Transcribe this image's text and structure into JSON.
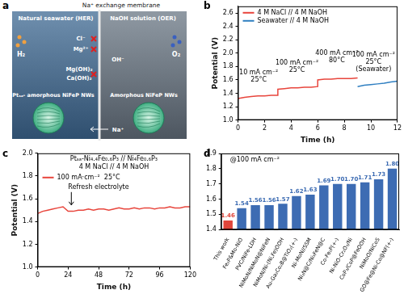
{
  "diagram": {
    "panel": "a",
    "membrane": "Na⁺ exchange membrane",
    "left_title": "Natural seawater (HER)",
    "right_title": "NaOH solution (OER)",
    "gases": [
      "H₂",
      "O₂"
    ],
    "ions": [
      "Cl⁻",
      "Mg²⁺",
      "OH⁻",
      "Mg(OH)₂",
      "Ca(OH)₂",
      "Na⁺"
    ],
    "left_catalyst": "Ptₛₐ- amorphous NiFeP NWs",
    "right_catalyst": "Amorphous NiFeP NWs"
  },
  "chart_data": [
    {
      "type": "line",
      "panel": "b",
      "x_label": "Time (h)",
      "y_label": "Potential (V)",
      "xlim": [
        0,
        12
      ],
      "xticks": [
        0,
        2,
        4,
        6,
        8,
        10,
        12
      ],
      "ylim": [
        1.0,
        2.7
      ],
      "yticks": [
        {
          "value": 1.0,
          "label": "1.0"
        },
        {
          "value": 1.2,
          "label": "1.2"
        },
        {
          "value": 1.4,
          "label": "1.4"
        },
        {
          "value": 1.6,
          "label": "1.6"
        },
        {
          "value": 1.8,
          "label": "1.8"
        },
        {
          "value": 2.0,
          "label": "2.0"
        },
        {
          "value": 2.2,
          "label": "2.2"
        },
        {
          "value": 2.4,
          "label": "2.4"
        },
        {
          "value": 2.6,
          "label": "2.6"
        }
      ],
      "grid": false,
      "legend": "upper left",
      "annotations": [
        [
          "10 mA cm⁻²",
          "25°C"
        ],
        [
          "100 mA cm⁻²",
          "25°C"
        ],
        [
          "400 mA cm⁻²",
          "80°C"
        ],
        [
          "100 mA cm⁻²",
          "25°C",
          "(Seawater)"
        ]
      ],
      "series": [
        {
          "name": "4 M NaCl // 4 M NaOH",
          "color": "#e8453c",
          "x": [
            0,
            0.5,
            1,
            1.5,
            2,
            2.5,
            3,
            3,
            3.5,
            4,
            4.5,
            5,
            5.5,
            6,
            6,
            6.5,
            7,
            7.5,
            8,
            8.5,
            9
          ],
          "values": [
            1.32,
            1.34,
            1.35,
            1.36,
            1.36,
            1.37,
            1.37,
            1.46,
            1.47,
            1.48,
            1.48,
            1.49,
            1.49,
            1.5,
            1.6,
            1.61,
            1.61,
            1.62,
            1.62,
            1.62,
            1.63
          ]
        },
        {
          "name": "Seawater // 4 M NaOH",
          "color": "#2f7fc1",
          "x": [
            9,
            9.5,
            10,
            10.5,
            11,
            11.5,
            12
          ],
          "values": [
            1.5,
            1.52,
            1.53,
            1.54,
            1.55,
            1.57,
            1.58
          ]
        }
      ]
    },
    {
      "type": "line",
      "panel": "c",
      "x_label": "Time (h)",
      "y_label": "Potential (V)",
      "xlim": [
        0,
        120
      ],
      "xticks": [
        0,
        24,
        48,
        72,
        96,
        120
      ],
      "ylim": [
        1.0,
        2.0
      ],
      "yticks": [
        {
          "value": 1.0,
          "label": "1.0"
        },
        {
          "value": 1.2,
          "label": "1.2"
        },
        {
          "value": 1.4,
          "label": "1.4"
        },
        {
          "value": 1.6,
          "label": "1.6"
        },
        {
          "value": 1.8,
          "label": "1.8"
        },
        {
          "value": 2.0,
          "label": "2.0"
        }
      ],
      "grid": false,
      "legend": "upper left",
      "annotations": [
        [
          "Ptₛₐ-Ni₄.₄Fe₀.₆P₃ // Ni₄Fe₀.₆P₃"
        ],
        [
          "4 M NaCl // 4 M NaOH"
        ],
        [
          "Refresh electrolyte"
        ]
      ],
      "x": [
        0,
        4,
        8,
        12,
        16,
        20,
        24,
        28,
        32,
        36,
        40,
        44,
        48,
        52,
        56,
        60,
        64,
        68,
        72,
        76,
        80,
        84,
        88,
        92,
        96,
        100,
        104,
        108,
        112,
        116,
        120
      ],
      "series": [
        {
          "name": "100 mA·cm⁻²  25°C",
          "color": "#e8453c",
          "values": [
            1.47,
            1.49,
            1.5,
            1.51,
            1.52,
            1.53,
            1.49,
            1.49,
            1.5,
            1.5,
            1.51,
            1.5,
            1.51,
            1.51,
            1.5,
            1.51,
            1.52,
            1.51,
            1.51,
            1.52,
            1.51,
            1.52,
            1.52,
            1.51,
            1.52,
            1.52,
            1.53,
            1.52,
            1.52,
            1.53,
            1.53
          ]
        }
      ]
    },
    {
      "type": "bar",
      "panel": "d",
      "annotations": [
        [
          "@100 mA cm⁻²"
        ]
      ],
      "categories": [
        "This work",
        "Fe₂P&Mo-NiO",
        "PVC/NiFe-LDH",
        "NiMoN/NiMoN@NiFeN",
        "NiMoN/Ni-(Ni,Fe)OOH",
        "Au-Ga₂Co₂B@TiO₂(+-)",
        "Ni-MoN//SSM",
        "Ni₃N@C/Ni₃FeN@C",
        "Co-Fe₂P(+-)",
        "Ni-NiO-Cr₂O₃/Ni",
        "CoP₃/CoP@FeOOH",
        "NiMoO/NiCoS",
        "GO@Fe@Ni-Co@NF(+-)"
      ],
      "values": [
        1.46,
        1.54,
        1.56,
        1.56,
        1.57,
        1.62,
        1.63,
        1.69,
        1.7,
        1.7,
        1.71,
        1.73,
        1.8
      ],
      "value_labels": [
        "1.46",
        "1.54",
        "1.56",
        "1.56",
        "1.57",
        "1.62",
        "1.63",
        "1.69",
        "1.70",
        "1.70",
        "1.71",
        "1.73",
        "1.80"
      ],
      "colors": [
        "#e0453a",
        "#3d6cb3",
        "#3d6cb3",
        "#3d6cb3",
        "#3d6cb3",
        "#3d6cb3",
        "#3d6cb3",
        "#3d6cb3",
        "#3d6cb3",
        "#3d6cb3",
        "#3d6cb3",
        "#3d6cb3",
        "#3d6cb3"
      ],
      "ylim": [
        1.4,
        1.9
      ],
      "yticks": [
        {
          "value": 1.4,
          "label": "1.4"
        },
        {
          "value": 1.5,
          "label": "1.5"
        },
        {
          "value": 1.6,
          "label": "1.6"
        },
        {
          "value": 1.7,
          "label": "1.7"
        },
        {
          "value": 1.8,
          "label": "1.8"
        },
        {
          "value": 1.9,
          "label": "1.9"
        }
      ],
      "grid": false,
      "data_labels": true
    }
  ]
}
